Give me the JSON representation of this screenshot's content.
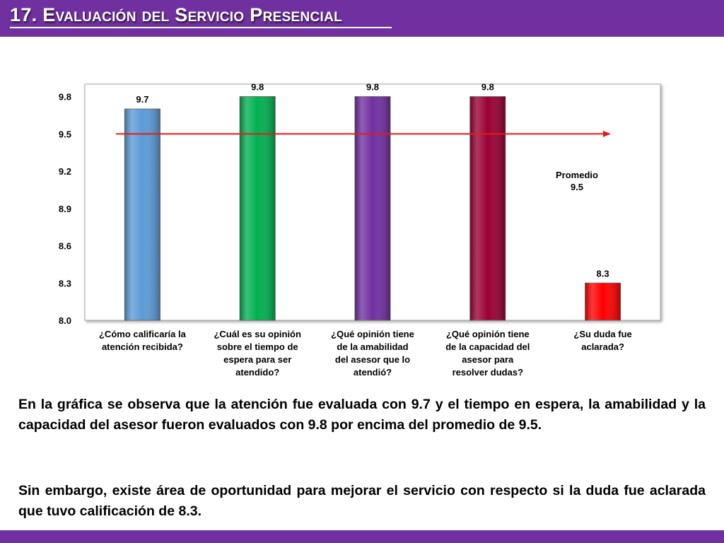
{
  "header": {
    "title": "17. Evaluación del Servicio Presencial"
  },
  "colors": {
    "header_bg": "#7030a0",
    "average_line": "#e31b1b",
    "bars": [
      "#5b9bd5",
      "#00b050",
      "#7030a0",
      "#990033",
      "#ff0000"
    ]
  },
  "chart_data": {
    "type": "bar",
    "categories": [
      [
        "¿Cómo calificaría la",
        "atención recibida?"
      ],
      [
        "¿Cuál es su opinión",
        "sobre el tiempo de",
        "espera para ser",
        "atendido?"
      ],
      [
        "¿Qué opinión tiene",
        "de la amabilidad",
        "del asesor que lo",
        "atendió?"
      ],
      [
        "¿Qué opinión tiene",
        "de la capacidad del",
        "asesor para",
        "resolver dudas?"
      ],
      [
        "¿Su duda fue",
        "aclarada?"
      ]
    ],
    "values": [
      9.7,
      9.8,
      9.8,
      9.8,
      8.3
    ],
    "value_labels": [
      "9.7",
      "9.8",
      "9.8",
      "9.8",
      "8.3"
    ],
    "ylim": [
      8.0,
      9.9
    ],
    "yticks": [
      "8.0",
      "8.3",
      "8.6",
      "8.9",
      "9.2",
      "9.5",
      "9.8"
    ],
    "average": {
      "value": 9.5,
      "label_lines": [
        "Promedio",
        "9.5"
      ]
    },
    "grid": false,
    "legend": "none"
  },
  "description": {
    "paragraph1": "En la gráfica se observa que la atención fue evaluada con 9.7 y el tiempo en espera, la amabilidad y la capacidad del asesor  fueron evaluados con 9.8 por encima del promedio de 9.5.",
    "paragraph2": "Sin embargo, existe área de oportunidad para mejorar el servicio con respecto si la duda fue aclarada que tuvo calificación de 8.3."
  }
}
